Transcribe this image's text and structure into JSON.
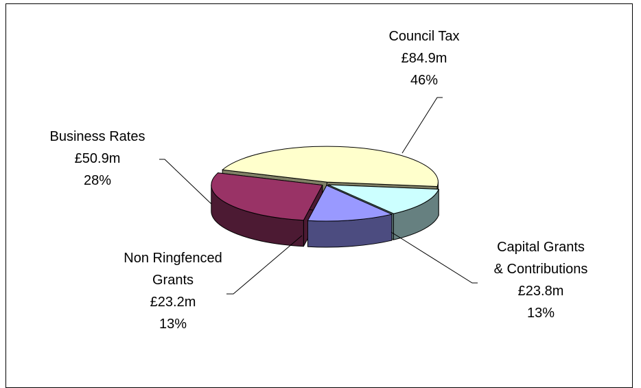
{
  "chart_data": {
    "type": "pie",
    "style": "3d-exploded-pie",
    "slices": [
      {
        "label_lines": [
          "Council Tax"
        ],
        "amount": "£84.9m",
        "percent": "46%",
        "value": 84.9,
        "top_color": "#ffffcc",
        "side_color": "#808066"
      },
      {
        "label_lines": [
          "Capital Grants",
          "& Contributions"
        ],
        "amount": "£23.8m",
        "percent": "13%",
        "value": 23.8,
        "top_color": "#ccffff",
        "side_color": "#668080"
      },
      {
        "label_lines": [
          "Non Ringfenced",
          "Grants"
        ],
        "amount": "£23.2m",
        "percent": "13%",
        "value": 23.2,
        "top_color": "#9999ff",
        "side_color": "#4c4c80"
      },
      {
        "label_lines": [
          "Business Rates"
        ],
        "amount": "£50.9m",
        "percent": "28%",
        "value": 50.9,
        "top_color": "#993366",
        "side_color": "#4c1a33"
      }
    ]
  }
}
